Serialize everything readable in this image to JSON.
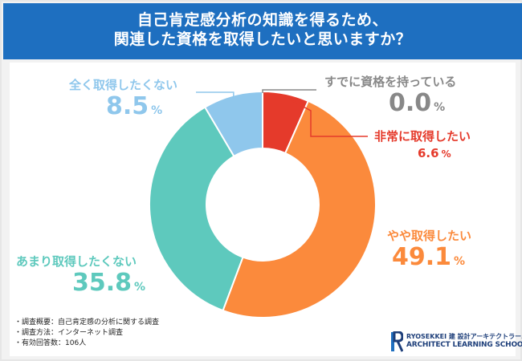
{
  "title_lines": [
    "自己肯定感分析の知識を得るため、",
    "関連した資格を取得したいと思いますか？"
  ],
  "chart_data": {
    "type": "pie",
    "donut": true,
    "categories": [
      "すでに資格を持っている",
      "非常に取得したい",
      "やや取得したい",
      "あまり取得したくない",
      "全く取得したくない"
    ],
    "values": [
      0.0,
      6.6,
      49.1,
      35.8,
      8.5
    ],
    "value_labels": [
      "0.0",
      "6.6",
      "49.1",
      "35.8",
      "8.5"
    ],
    "unit": "%",
    "colors": [
      "#888888",
      "#e53a2b",
      "#fb8a3c",
      "#5ec9bd",
      "#8fc7ec"
    ]
  },
  "notes": [
    "調査概要：自己肯定感の分析に関する調査",
    "調査方法：インターネット調査",
    "有効回答数：106人"
  ],
  "logo": {
    "line1": "RYOSEKKEI 建 設計アーキテクトラーニング",
    "line2": "ARCHITECT LEARNING SCHOOL"
  }
}
